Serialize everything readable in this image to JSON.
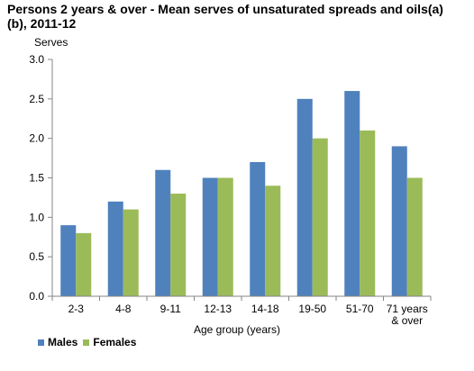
{
  "chart_data": {
    "type": "bar",
    "title": "Persons 2 years & over - Mean serves of unsaturated spreads and oils(a)(b), 2011-12",
    "ylabel": "Serves",
    "xlabel": "Age group (years)",
    "categories": [
      "2-3",
      "4-8",
      "9-11",
      "12-13",
      "14-18",
      "19-50",
      "51-70",
      "71 years & over"
    ],
    "series": [
      {
        "name": "Males",
        "color": "#4F81BD",
        "values": [
          0.9,
          1.2,
          1.6,
          1.5,
          1.7,
          2.5,
          2.6,
          1.9
        ]
      },
      {
        "name": "Females",
        "color": "#9BBB59",
        "values": [
          0.8,
          1.1,
          1.3,
          1.5,
          1.4,
          2.0,
          2.1,
          1.5
        ]
      }
    ],
    "ylim": [
      0,
      3.0
    ],
    "yticks": [
      "0.0",
      "0.5",
      "1.0",
      "1.5",
      "2.0",
      "2.5",
      "3.0"
    ],
    "grid": false,
    "legend_position": "bottom-left"
  }
}
